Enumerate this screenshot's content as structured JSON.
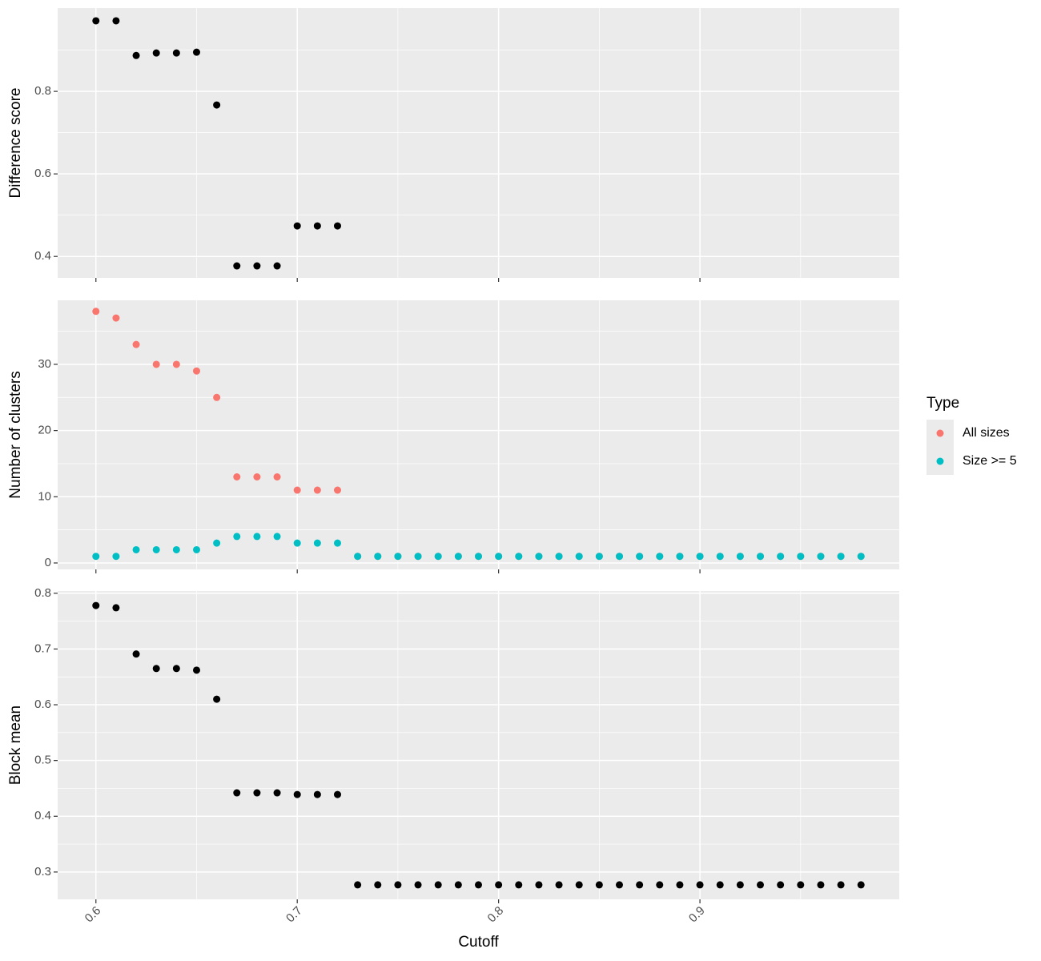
{
  "chart_data": [
    {
      "type": "scatter",
      "ylabel": "Difference score",
      "x": [
        0.6,
        0.61,
        0.62,
        0.63,
        0.64,
        0.65,
        0.66,
        0.67,
        0.68,
        0.69,
        0.7,
        0.71,
        0.72
      ],
      "values": [
        0.971,
        0.971,
        0.887,
        0.893,
        0.893,
        0.895,
        0.767,
        0.377,
        0.377,
        0.377,
        0.474,
        0.474,
        0.474
      ],
      "color": "#000000",
      "xlim": [
        0.581,
        0.999
      ],
      "xticks": [
        0.6,
        0.7,
        0.8,
        0.9
      ],
      "ylim": [
        0.348,
        1.002
      ],
      "yticks": [
        0.4,
        0.6,
        0.8
      ],
      "grid": true
    },
    {
      "type": "scatter",
      "ylabel": "Number of clusters",
      "x": [
        0.6,
        0.61,
        0.62,
        0.63,
        0.64,
        0.65,
        0.66,
        0.67,
        0.68,
        0.69,
        0.7,
        0.71,
        0.72,
        0.73,
        0.74,
        0.75,
        0.76,
        0.77,
        0.78,
        0.79,
        0.8,
        0.81,
        0.82,
        0.83,
        0.84,
        0.85,
        0.86,
        0.87,
        0.88,
        0.89,
        0.9,
        0.91,
        0.92,
        0.93,
        0.94,
        0.95,
        0.96,
        0.97,
        0.98
      ],
      "series": [
        {
          "name": "All sizes",
          "color": "#F8766D",
          "values": [
            38,
            37,
            33,
            30,
            30,
            29,
            25,
            13,
            13,
            13,
            11,
            11,
            11,
            1,
            1,
            1,
            1,
            1,
            1,
            1,
            1,
            1,
            1,
            1,
            1,
            1,
            1,
            1,
            1,
            1,
            1,
            1,
            1,
            1,
            1,
            1,
            1,
            1,
            1
          ]
        },
        {
          "name": "Size >= 5",
          "color": "#00BFC4",
          "values": [
            1,
            1,
            2,
            2,
            2,
            2,
            3,
            4,
            4,
            4,
            3,
            3,
            3,
            1,
            1,
            1,
            1,
            1,
            1,
            1,
            1,
            1,
            1,
            1,
            1,
            1,
            1,
            1,
            1,
            1,
            1,
            1,
            1,
            1,
            1,
            1,
            1,
            1,
            1
          ]
        }
      ],
      "legend_title": "Type",
      "legend": "right",
      "xlim": [
        0.581,
        0.999
      ],
      "xticks": [
        0.6,
        0.7,
        0.8,
        0.9
      ],
      "ylim": [
        -0.97,
        39.67
      ],
      "yticks": [
        0,
        10,
        20,
        30
      ],
      "grid": true
    },
    {
      "type": "scatter",
      "ylabel": "Block mean",
      "xlabel": "Cutoff",
      "x": [
        0.6,
        0.61,
        0.62,
        0.63,
        0.64,
        0.65,
        0.66,
        0.67,
        0.68,
        0.69,
        0.7,
        0.71,
        0.72,
        0.73,
        0.74,
        0.75,
        0.76,
        0.77,
        0.78,
        0.79,
        0.8,
        0.81,
        0.82,
        0.83,
        0.84,
        0.85,
        0.86,
        0.87,
        0.88,
        0.89,
        0.9,
        0.91,
        0.92,
        0.93,
        0.94,
        0.95,
        0.96,
        0.97,
        0.98
      ],
      "values": [
        0.778,
        0.774,
        0.691,
        0.665,
        0.665,
        0.662,
        0.61,
        0.442,
        0.442,
        0.442,
        0.439,
        0.439,
        0.439,
        0.277,
        0.277,
        0.277,
        0.277,
        0.277,
        0.277,
        0.277,
        0.277,
        0.277,
        0.277,
        0.277,
        0.277,
        0.277,
        0.277,
        0.277,
        0.277,
        0.277,
        0.277,
        0.277,
        0.277,
        0.277,
        0.277,
        0.277,
        0.277,
        0.277,
        0.277
      ],
      "color": "#000000",
      "xlim": [
        0.581,
        0.999
      ],
      "xticks": [
        0.6,
        0.7,
        0.8,
        0.9
      ],
      "ylim": [
        0.251,
        0.804
      ],
      "yticks": [
        0.3,
        0.4,
        0.5,
        0.6,
        0.7,
        0.8
      ],
      "grid": true
    }
  ]
}
